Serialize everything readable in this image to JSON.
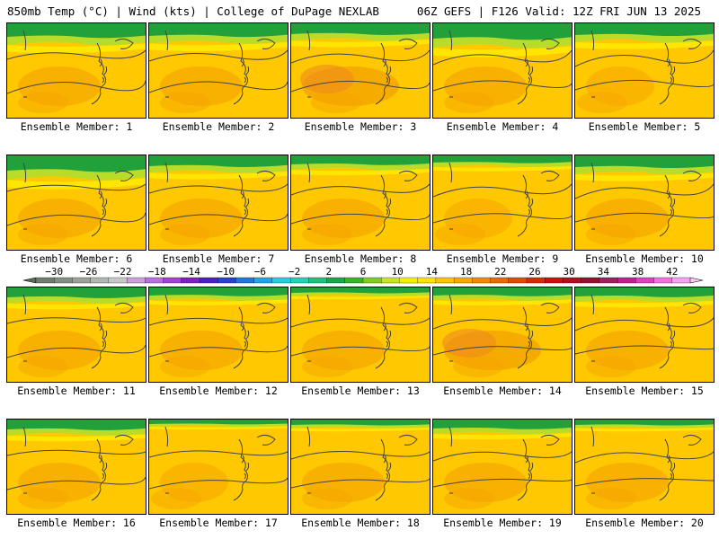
{
  "header": {
    "title_left": "850mb Temp (°C) | Wind (kts) | College of DuPage NEXLAB",
    "title_right": "06Z GEFS | F126 Valid: 12Z FRI JUN 13 2025"
  },
  "members": [
    {
      "label": "Ensemble Member: 1"
    },
    {
      "label": "Ensemble Member: 2"
    },
    {
      "label": "Ensemble Member: 3"
    },
    {
      "label": "Ensemble Member: 4"
    },
    {
      "label": "Ensemble Member: 5"
    },
    {
      "label": "Ensemble Member: 6"
    },
    {
      "label": "Ensemble Member: 7"
    },
    {
      "label": "Ensemble Member: 8"
    },
    {
      "label": "Ensemble Member: 9"
    },
    {
      "label": "Ensemble Member: 10"
    },
    {
      "label": "Ensemble Member: 11"
    },
    {
      "label": "Ensemble Member: 12"
    },
    {
      "label": "Ensemble Member: 13"
    },
    {
      "label": "Ensemble Member: 14"
    },
    {
      "label": "Ensemble Member: 15"
    },
    {
      "label": "Ensemble Member: 16"
    },
    {
      "label": "Ensemble Member: 17"
    },
    {
      "label": "Ensemble Member: 18"
    },
    {
      "label": "Ensemble Member: 19"
    },
    {
      "label": "Ensemble Member: 20"
    }
  ],
  "colorbar": {
    "ticks": [
      "−30",
      "−26",
      "−22",
      "−18",
      "−14",
      "−10",
      "−6",
      "−2",
      "2",
      "6",
      "10",
      "14",
      "18",
      "22",
      "26",
      "30",
      "34",
      "38",
      "42"
    ],
    "colors": [
      "#6f7f6f",
      "#848f84",
      "#9aa39a",
      "#b0b6b0",
      "#c7c7c7",
      "#c9a0dc",
      "#b86fe0",
      "#a43fd8",
      "#7f1fc8",
      "#4a21c8",
      "#2741d8",
      "#1f78e0",
      "#1fa6e6",
      "#29cfe0",
      "#22d3b0",
      "#1fc27a",
      "#16a84a",
      "#3ab52a",
      "#7fce1f",
      "#c8e61f",
      "#f2f200",
      "#ffe100",
      "#ffc400",
      "#f7a800",
      "#f28a00",
      "#eb6a00",
      "#e34a00",
      "#d92a00",
      "#cf0f0f",
      "#b50f1f",
      "#9a0f2f",
      "#a0205f",
      "#c02090",
      "#e040c0",
      "#f070e0",
      "#f5a0f0"
    ],
    "scheme": {
      "green": "#22a03a",
      "yellowgreen": "#b9dc2a",
      "yellow": "#ffe600",
      "gold": "#ffc800",
      "orange": "#f5a600",
      "dark_orange": "#ee8a1e",
      "contour": "#444444"
    }
  }
}
